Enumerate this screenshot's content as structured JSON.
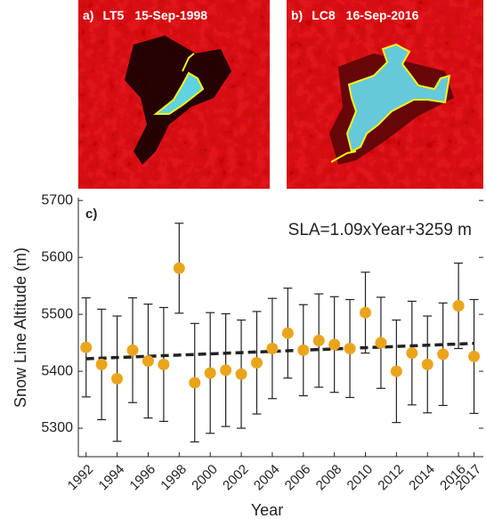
{
  "images": [
    {
      "label": "a)",
      "sensor": "LT5",
      "date": "15-Sep-1998"
    },
    {
      "label": "b)",
      "sensor": "LC8",
      "date": "16-Sep-2016"
    }
  ],
  "chart_data": {
    "type": "scatter",
    "panel_label": "c)",
    "annotation": "SLA=1.09xYear+3259 m",
    "x_label": "Year",
    "y_label": "Snow Line Altitude (m)",
    "x": [
      1992,
      1993,
      1994,
      1995,
      1996,
      1997,
      1998,
      1999,
      2000,
      2001,
      2002,
      2003,
      2004,
      2005,
      2006,
      2007,
      2008,
      2009,
      2010,
      2011,
      2012,
      2013,
      2014,
      2015,
      2016,
      2017
    ],
    "values": [
      5442,
      5412,
      5387,
      5437,
      5418,
      5412,
      5581,
      5380,
      5397,
      5402,
      5395,
      5415,
      5440,
      5467,
      5437,
      5454,
      5447,
      5440,
      5503,
      5450,
      5400,
      5432,
      5412,
      5430,
      5515,
      5426
    ],
    "errors": [
      87,
      97,
      110,
      92,
      100,
      100,
      79,
      104,
      106,
      99,
      95,
      90,
      88,
      79,
      80,
      82,
      84,
      86,
      71,
      80,
      90,
      91,
      85,
      90,
      75,
      100
    ],
    "color": "#eaa51c",
    "trend": {
      "x": [
        1992,
        2017
      ],
      "values": [
        5422,
        5449
      ],
      "color": "#222222"
    },
    "xlim": [
      1991.5,
      2017.6
    ],
    "ylim": [
      5250,
      5705
    ],
    "xticks": [
      1992,
      1994,
      1996,
      1998,
      2000,
      2002,
      2004,
      2006,
      2008,
      2010,
      2012,
      2014,
      2016,
      2017
    ],
    "yticks": [
      5300,
      5400,
      5500,
      5600,
      5700
    ]
  }
}
